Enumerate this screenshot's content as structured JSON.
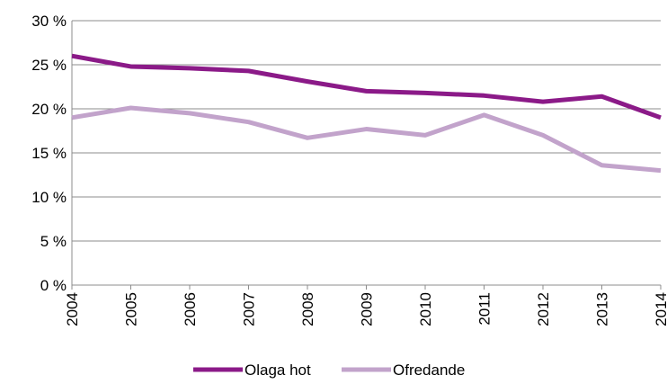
{
  "chart_data": {
    "type": "line",
    "categories": [
      "2004",
      "2005",
      "2006",
      "2007",
      "2008",
      "2009",
      "2010",
      "2011",
      "2012",
      "2013",
      "2014"
    ],
    "series": [
      {
        "name": "Olaga hot",
        "color": "#8b1a88",
        "values": [
          26.0,
          24.8,
          24.6,
          24.3,
          23.1,
          22.0,
          21.8,
          21.5,
          20.8,
          21.4,
          19.0
        ]
      },
      {
        "name": "Ofredande",
        "color": "#c2a3cb",
        "values": [
          19.0,
          20.1,
          19.5,
          18.5,
          16.7,
          17.7,
          17.0,
          19.3,
          17.0,
          13.6,
          13.0
        ]
      }
    ],
    "ylim": [
      0,
      30
    ],
    "yticks": [
      {
        "value": 0,
        "label": "0 %"
      },
      {
        "value": 5,
        "label": "5 %"
      },
      {
        "value": 10,
        "label": "10 %"
      },
      {
        "value": 15,
        "label": "15 %"
      },
      {
        "value": 20,
        "label": "20 %"
      },
      {
        "value": 25,
        "label": "25 %"
      },
      {
        "value": 30,
        "label": "30 %"
      }
    ],
    "grid": true,
    "legend": "bottom"
  }
}
